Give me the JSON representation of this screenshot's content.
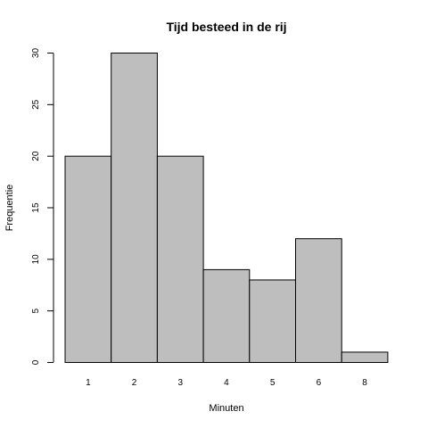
{
  "chart_data": {
    "type": "bar",
    "title": "Tijd besteed in de rij",
    "xlabel": "Minuten",
    "ylabel": "Frequentie",
    "categories": [
      "1",
      "2",
      "3",
      "4",
      "5",
      "6",
      "8"
    ],
    "values": [
      20,
      30,
      20,
      9,
      8,
      12,
      1
    ],
    "ylim": [
      0,
      30
    ],
    "yticks": [
      "0",
      "5",
      "10",
      "15",
      "20",
      "25",
      "30"
    ],
    "bar_color": "#bebebe",
    "grid": false,
    "legend": "none"
  }
}
